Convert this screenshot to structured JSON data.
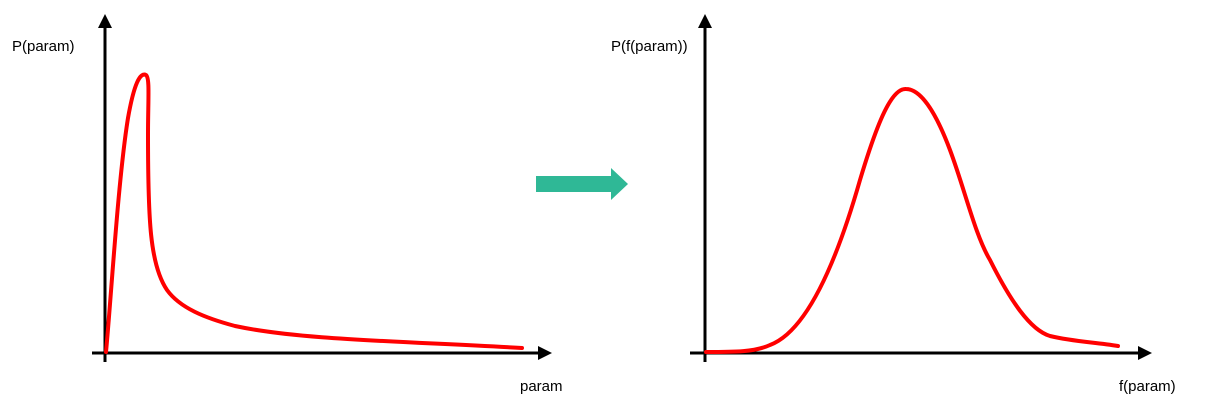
{
  "left_plot": {
    "y_label": "P(param)",
    "x_label": "param"
  },
  "right_plot": {
    "y_label": "P(f(param))",
    "x_label": "f(param)"
  },
  "colors": {
    "curve": "#ff0000",
    "axis": "#000000",
    "transform_arrow": "#2fb896"
  }
}
